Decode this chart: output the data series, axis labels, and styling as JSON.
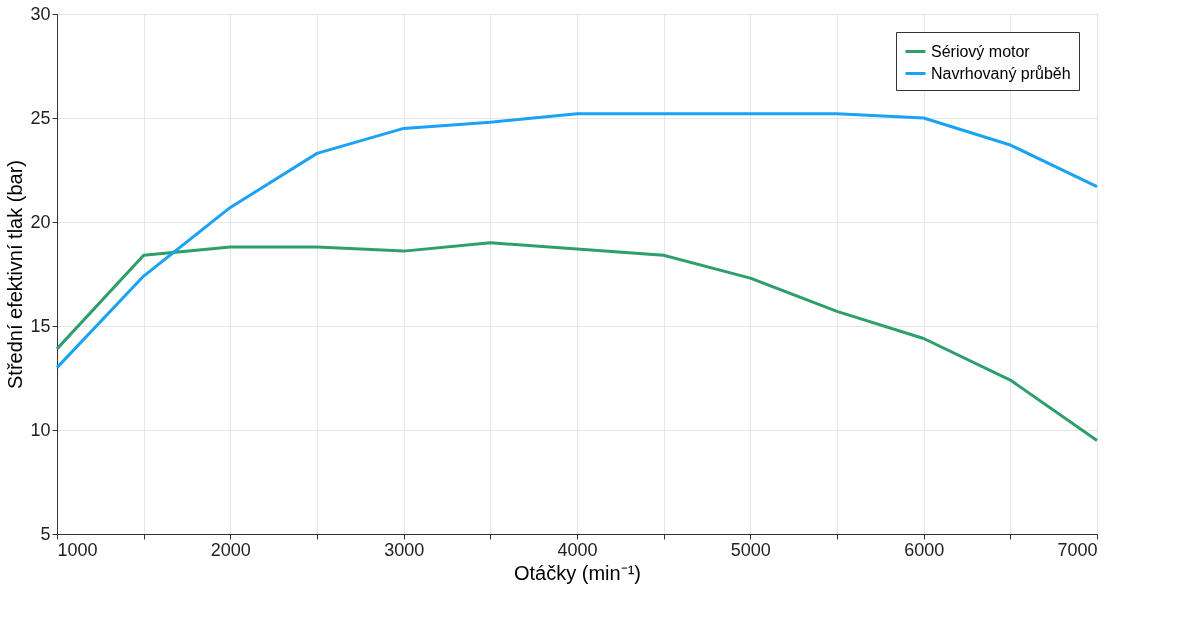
{
  "chart_data": {
    "type": "line",
    "xlabel": "Otáčky (min⁻¹)",
    "ylabel": "Střední efektivní tlak (bar)",
    "x": [
      1000,
      1500,
      2000,
      2500,
      3000,
      3500,
      4000,
      4500,
      5000,
      5500,
      6000,
      6500,
      7000
    ],
    "series": [
      {
        "name": "Sériový motor",
        "color": "#2e9e6b",
        "values": [
          13.9,
          18.4,
          18.8,
          18.8,
          18.6,
          19.0,
          18.7,
          18.4,
          17.3,
          15.7,
          14.4,
          12.4,
          9.5
        ]
      },
      {
        "name": "Navrhovaný průběh",
        "color": "#1aa3f5",
        "values": [
          13.0,
          17.4,
          20.7,
          23.3,
          24.5,
          24.8,
          25.2,
          25.2,
          25.2,
          25.2,
          25.0,
          23.7,
          21.7
        ]
      }
    ],
    "xlim": [
      1000,
      7000
    ],
    "xticks": [
      1000,
      {
        "value": 1500,
        "label": null
      },
      2000,
      {
        "value": 2500,
        "label": null
      },
      3000,
      {
        "value": 3500,
        "label": null
      },
      4000,
      {
        "value": 4500,
        "label": null
      },
      5000,
      {
        "value": 5500,
        "label": null
      },
      6000,
      {
        "value": 6500,
        "label": null
      },
      7000
    ],
    "ylim": [
      5,
      30
    ],
    "yticks": [
      5,
      10,
      15,
      20,
      25,
      30
    ],
    "grid": true,
    "legend": "top right",
    "marker": "none",
    "line_style": "solid"
  }
}
